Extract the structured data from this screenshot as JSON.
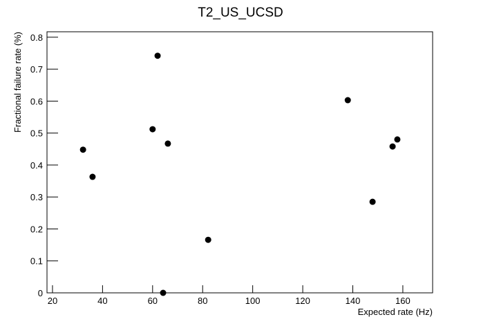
{
  "chart_data": {
    "type": "scatter",
    "title": "T2_US_UCSD",
    "x_label": "Expected rate (Hz)",
    "y_label": "Fractional failure rate (%)",
    "x": [
      32.2,
      36.0,
      62.0,
      60.0,
      66.1,
      64.2,
      82.2,
      138.0,
      147.9,
      155.9,
      157.8
    ],
    "values": [
      0.448,
      0.363,
      0.742,
      0.512,
      0.467,
      0,
      0.166,
      0.603,
      0.285,
      0.458,
      0.48
    ],
    "color": "#000000",
    "xlim": [
      17.8,
      171.9
    ],
    "xticks": [
      20,
      40,
      60,
      80,
      100,
      120,
      140,
      160
    ],
    "ylim": [
      0,
      0.817
    ],
    "yticks": [
      0,
      0.1,
      0.2,
      0.3,
      0.4,
      0.5,
      0.6,
      0.7,
      0.8
    ]
  }
}
